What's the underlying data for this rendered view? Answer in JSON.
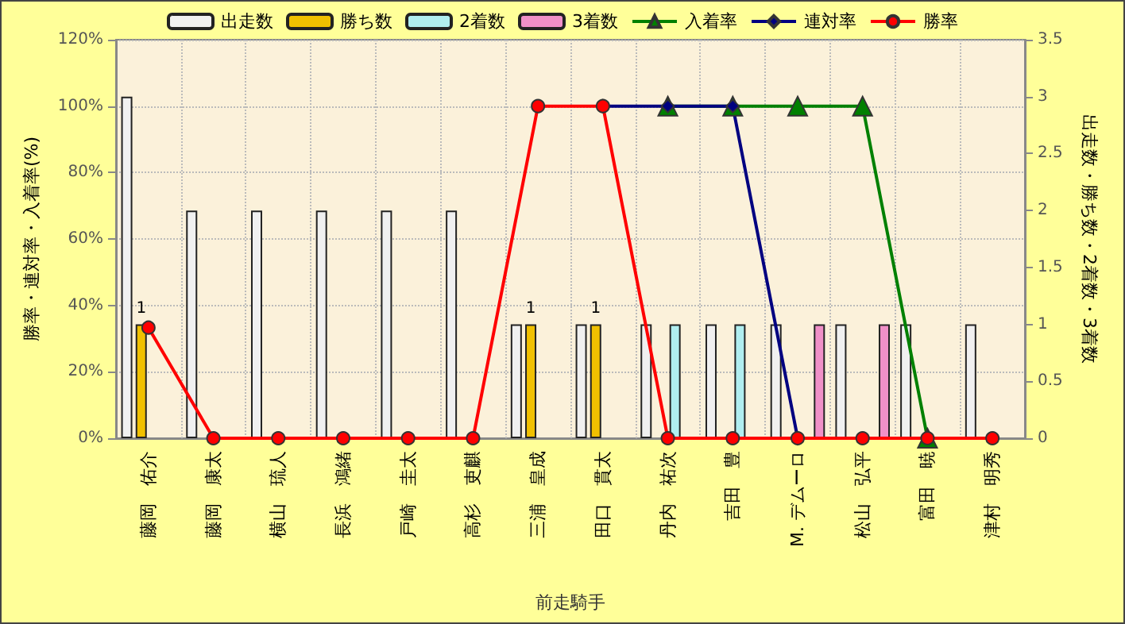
{
  "chart_data": {
    "type": "bar",
    "xlabel": "前走騎手",
    "ylabel": "勝率・連対率・入着率(%)",
    "y2label": "出走数・勝ち数・2着数・3着数",
    "categories": [
      "藤岡　佑介",
      "藤岡　康太",
      "横山　琉人",
      "長浜　鴻緒",
      "戸崎　圭太",
      "高杉　吏麒",
      "三浦　皇成",
      "田口　貫太",
      "丹内　祐次",
      "吉田　豊",
      "M. デムーロ",
      "松山　弘平",
      "富田　暁",
      "津村　明秀"
    ],
    "series": [
      {
        "name": "出走数",
        "axis": "y2",
        "color": "#f0f0f0",
        "values": [
          3,
          2,
          2,
          2,
          2,
          2,
          1,
          1,
          1,
          1,
          1,
          1,
          1,
          1
        ]
      },
      {
        "name": "勝ち数",
        "axis": "y2",
        "color": "#f0c000",
        "values": [
          1,
          null,
          null,
          null,
          null,
          null,
          1,
          1,
          null,
          null,
          null,
          null,
          null,
          null
        ],
        "value_labels": [
          "1",
          null,
          null,
          null,
          null,
          null,
          "1",
          "1",
          null,
          null,
          null,
          null,
          null,
          null
        ]
      },
      {
        "name": "2着数",
        "axis": "y2",
        "color": "#b0eef0",
        "values": [
          null,
          null,
          null,
          null,
          null,
          null,
          null,
          null,
          1,
          1,
          null,
          null,
          null,
          null
        ]
      },
      {
        "name": "3着数",
        "axis": "y2",
        "color": "#f090c8",
        "values": [
          null,
          null,
          null,
          null,
          null,
          null,
          null,
          null,
          null,
          null,
          1,
          1,
          null,
          null
        ]
      },
      {
        "name": "入着率",
        "type": "line",
        "color": "#008000",
        "marker": "triangle",
        "values": [
          null,
          null,
          null,
          null,
          null,
          null,
          null,
          null,
          100,
          100,
          100,
          100,
          0,
          null
        ]
      },
      {
        "name": "連対率",
        "type": "line",
        "color": "#000080",
        "marker": "diamond",
        "values": [
          null,
          null,
          null,
          null,
          null,
          null,
          null,
          100,
          100,
          100,
          0,
          null,
          null,
          null
        ]
      },
      {
        "name": "勝率",
        "type": "line",
        "color": "#ff0000",
        "marker": "circle",
        "values": [
          33.3,
          0,
          0,
          0,
          0,
          0,
          100,
          100,
          0,
          0,
          0,
          0,
          0,
          0
        ]
      }
    ],
    "ylim": [
      0,
      120
    ],
    "yticks": [
      {
        "value": 0,
        "label": "0%"
      },
      {
        "value": 20,
        "label": "20%"
      },
      {
        "value": 40,
        "label": "40%"
      },
      {
        "value": 60,
        "label": "60%"
      },
      {
        "value": 80,
        "label": "80%"
      },
      {
        "value": 100,
        "label": "100%"
      },
      {
        "value": 120,
        "label": "120%"
      }
    ],
    "y2lim": [
      0,
      3.5
    ],
    "y2ticks": [
      0,
      0.5,
      1,
      1.5,
      2,
      2.5,
      3,
      3.5
    ],
    "grid": true,
    "legend": "top"
  }
}
